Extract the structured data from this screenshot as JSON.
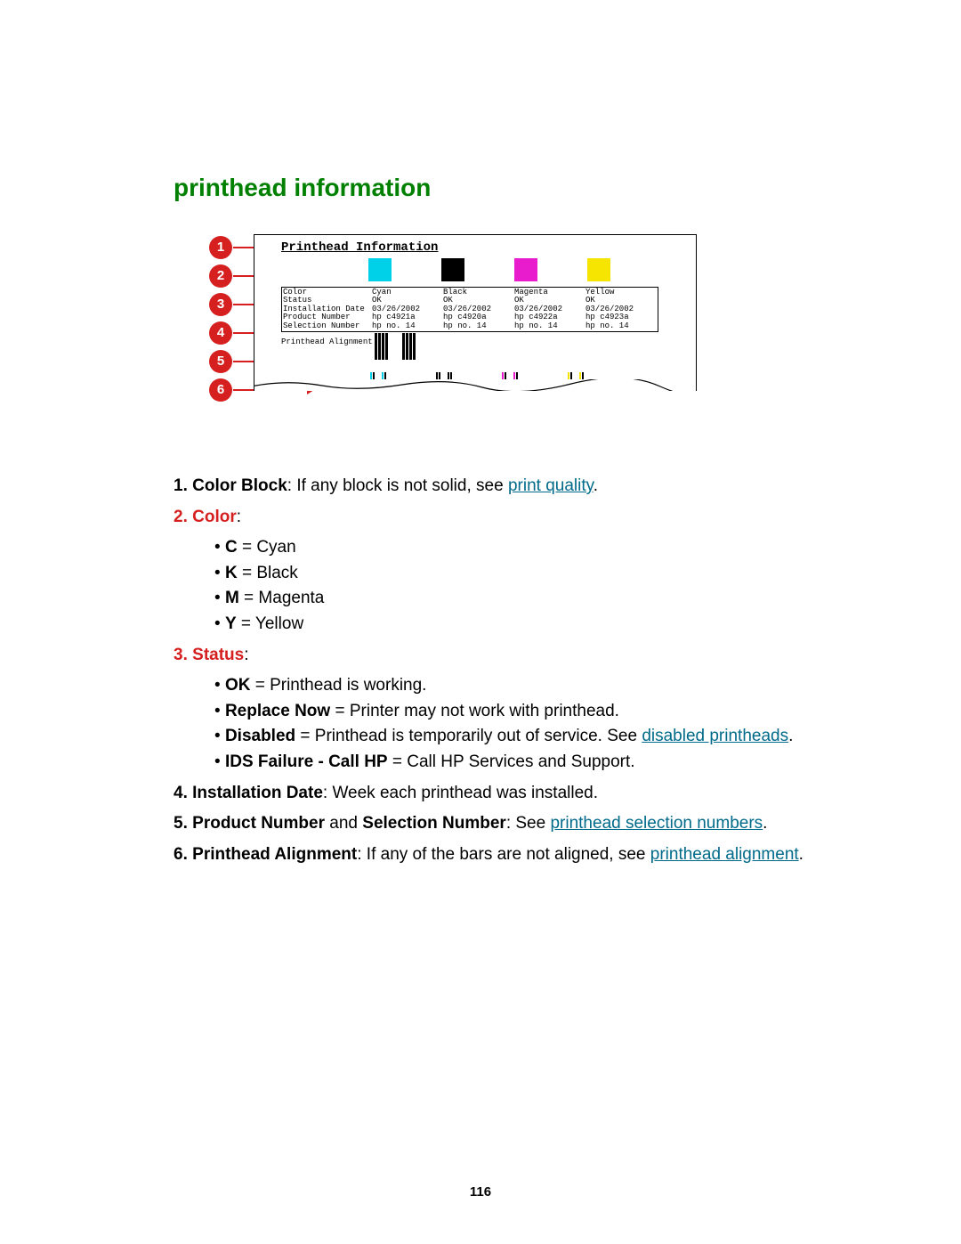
{
  "section_title": "printhead information",
  "diagram": {
    "title": "Printhead  Information",
    "callouts": [
      "1",
      "2",
      "3",
      "4",
      "5",
      "6"
    ],
    "colors": {
      "cyan": "#00d0e8",
      "black": "#000000",
      "magenta": "#e81ccc",
      "yellow": "#f5e500"
    },
    "table": {
      "rows": [
        {
          "label": "Color",
          "vals": [
            "Cyan",
            "Black",
            "Magenta",
            "Yellow"
          ]
        },
        {
          "label": "Status",
          "vals": [
            "OK",
            "OK",
            "OK",
            "OK"
          ]
        },
        {
          "label": "Installation Date",
          "vals": [
            "03/26/2002",
            "03/26/2002",
            "03/26/2002",
            "03/26/2002"
          ]
        },
        {
          "label": "Product Number",
          "vals": [
            "hp c4921a",
            "hp c4920a",
            "hp c4922a",
            "hp c4923a"
          ]
        },
        {
          "label": "Selection Number",
          "vals": [
            "hp no. 14",
            "hp no. 14",
            "hp no. 14",
            "hp no. 14"
          ]
        }
      ],
      "alignment_label": "Printhead Alignment"
    }
  },
  "list": {
    "i1": {
      "num": "1.",
      "label": "Color Block",
      "text": ": If any block is not solid, see ",
      "link": "print quality",
      "tail": "."
    },
    "i2": {
      "num": "2.",
      "label": "Color",
      "text": ":",
      "subs": [
        {
          "b": "C",
          "t": " = Cyan"
        },
        {
          "b": "K",
          "t": " = Black"
        },
        {
          "b": "M",
          "t": " = Magenta"
        },
        {
          "b": "Y",
          "t": " = Yellow"
        }
      ]
    },
    "i3": {
      "num": "3.",
      "label": "Status",
      "text": ":",
      "subs": [
        {
          "b": "OK",
          "t": " = Printhead is working."
        },
        {
          "b": "Replace Now",
          "t": " = Printer may not work with printhead."
        },
        {
          "b": "Disabled",
          "t": " = Printhead is temporarily out of service. See ",
          "link": "disabled printheads",
          "tail": "."
        },
        {
          "b": "IDS Failure - Call HP",
          "t": " = Call HP Services and Support."
        }
      ]
    },
    "i4": {
      "num": "4.",
      "label": "Installation Date",
      "text": ": Week each printhead was installed."
    },
    "i5": {
      "num": "5.",
      "b1": "Product Number",
      "mid": " and ",
      "b2": "Selection Number",
      "text": ": See ",
      "link": "printhead selection numbers",
      "tail": "."
    },
    "i6": {
      "num": "6.",
      "label": "Printhead Alignment",
      "text": ": If any of the bars are not aligned, see ",
      "link": "printhead alignment",
      "tail": "."
    }
  },
  "page_number": "116",
  "style": {
    "title_color": "#008000",
    "callout_bg": "#d62020",
    "link_color": "#006a8a"
  }
}
